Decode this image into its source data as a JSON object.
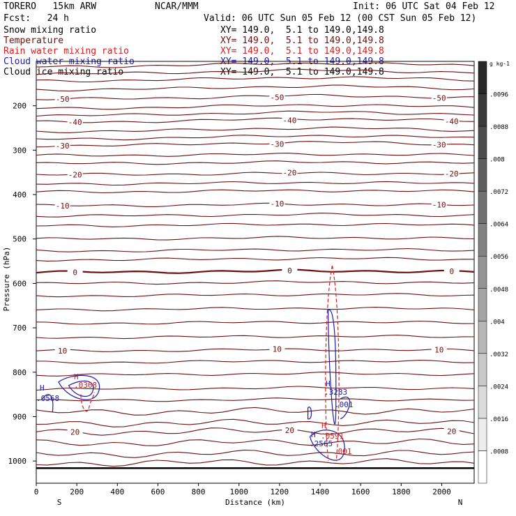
{
  "header": {
    "model": "TORERO   15km ARW",
    "source": "NCAR/MMM",
    "init": "Init: 06 UTC Sat 04 Feb 12",
    "fcst": "Fcst:   24 h",
    "valid": "Valid: 06 UTC Sun 05 Feb 12 (00 CST Sun 05 Feb 12)"
  },
  "legend": [
    {
      "name": "Snow mixing ratio",
      "xy": "XY= 149.0,  5.1 to 149.0,149.8",
      "color": "#000000"
    },
    {
      "name": "Temperature",
      "xy": "XY= 149.0,  5.1 to 149.0,149.8",
      "color": "#6b0f0f"
    },
    {
      "name": "Rain water mixing ratio",
      "xy": "XY= 149.0,  5.1 to 149.0,149.8",
      "color": "#e01b1b"
    },
    {
      "name": "Cloud water mixing ratio",
      "xy": "XY= 149.0,  5.1 to 149.0,149.8",
      "color": "#1c1ca8"
    },
    {
      "name": "Cloud ice mixing ratio",
      "xy": "XY= 149.0,  5.1 to 149.0,149.8",
      "color": "#000000"
    }
  ],
  "chart_data": {
    "type": "contour",
    "xlabel": "Distance (km)",
    "ylabel": "Pressure (hPa)",
    "x_range": [
      0,
      2160
    ],
    "y_range": [
      1050,
      100
    ],
    "x_ticks": [
      0,
      200,
      400,
      600,
      800,
      1000,
      1200,
      1400,
      1600,
      1800,
      2000
    ],
    "y_ticks": [
      200,
      300,
      400,
      500,
      600,
      700,
      800,
      900,
      1000
    ],
    "endpoints": {
      "left": "S",
      "right": "N"
    },
    "temperature_isotherms": [
      {
        "label": "-50",
        "p": 185
      },
      {
        "label": "-40",
        "p": 237
      },
      {
        "label": "-30",
        "p": 290
      },
      {
        "label": "-20",
        "p": 355
      },
      {
        "label": "-10",
        "p": 425
      },
      {
        "label": "0",
        "p": 575
      },
      {
        "label": "10",
        "p": 752
      },
      {
        "label": "20",
        "p": 935
      }
    ],
    "extra_temperature_contours_p": [
      112,
      128,
      144,
      164,
      206,
      222,
      258,
      275,
      312,
      330,
      376,
      394,
      448,
      470,
      500,
      527,
      547,
      600,
      628,
      659,
      690,
      722,
      778,
      806,
      838,
      864,
      890,
      916,
      960,
      985,
      1005
    ],
    "colorbar": {
      "unit": "g kg-1",
      "ticks": [
        ".0008",
        ".0016",
        ".0024",
        ".0032",
        ".004",
        ".0048",
        ".0056",
        ".0064",
        ".0072",
        ".008",
        ".0088",
        ".0096"
      ]
    },
    "annotations": [
      {
        "text": "H",
        "color": "#1c1ca8"
      },
      {
        "text": ".0568",
        "color": "#1c1ca8"
      },
      {
        "text": "H",
        "color": "#e01b1b"
      },
      {
        "text": ".0368",
        "color": "#e01b1b"
      },
      {
        "text": "H",
        "color": "#1c1ca8"
      },
      {
        "text": ".3283",
        "color": "#1c1ca8"
      },
      {
        "text": ".001",
        "color": "#1c1ca8"
      },
      {
        "text": "H",
        "color": "#e01b1b"
      },
      {
        "text": ".0591",
        "color": "#e01b1b"
      },
      {
        "text": "H",
        "color": "#1c1ca8"
      },
      {
        "text": ".2565",
        "color": "#1c1ca8"
      },
      {
        "text": ".001",
        "color": "#e01b1b"
      }
    ]
  }
}
